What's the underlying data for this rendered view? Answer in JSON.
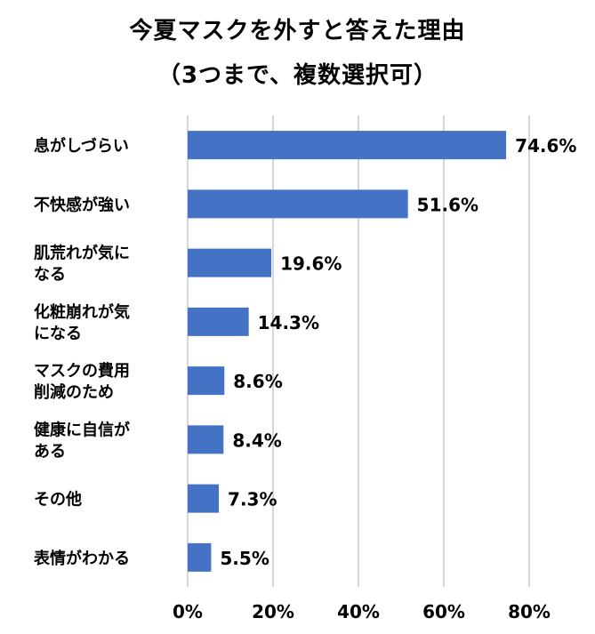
{
  "chart_data": {
    "type": "bar",
    "orientation": "horizontal",
    "title": "今夏マスクを外すと答えた理由",
    "subtitle": "（3つまで、複数選択可）",
    "categories": [
      [
        "息がしづらい"
      ],
      [
        "不快感が強い"
      ],
      [
        "肌荒れが気に",
        "なる"
      ],
      [
        "化粧崩れが気",
        "になる"
      ],
      [
        "マスクの費用",
        "削減のため"
      ],
      [
        "健康に自信が",
        "ある"
      ],
      [
        "その他"
      ],
      [
        "表情がわかる"
      ]
    ],
    "values": [
      74.6,
      51.6,
      19.6,
      14.3,
      8.6,
      8.4,
      7.3,
      5.5
    ],
    "data_labels": [
      "74.6%",
      "51.6%",
      "19.6%",
      "14.3%",
      "8.6%",
      "8.4%",
      "7.3%",
      "5.5%"
    ],
    "xlim": [
      0,
      80
    ],
    "xticks": [
      0,
      20,
      40,
      60,
      80
    ],
    "xtick_labels": [
      "0%",
      "20%",
      "40%",
      "60%",
      "80%"
    ],
    "grid": "vertical",
    "bar_color": "#4472C4"
  }
}
